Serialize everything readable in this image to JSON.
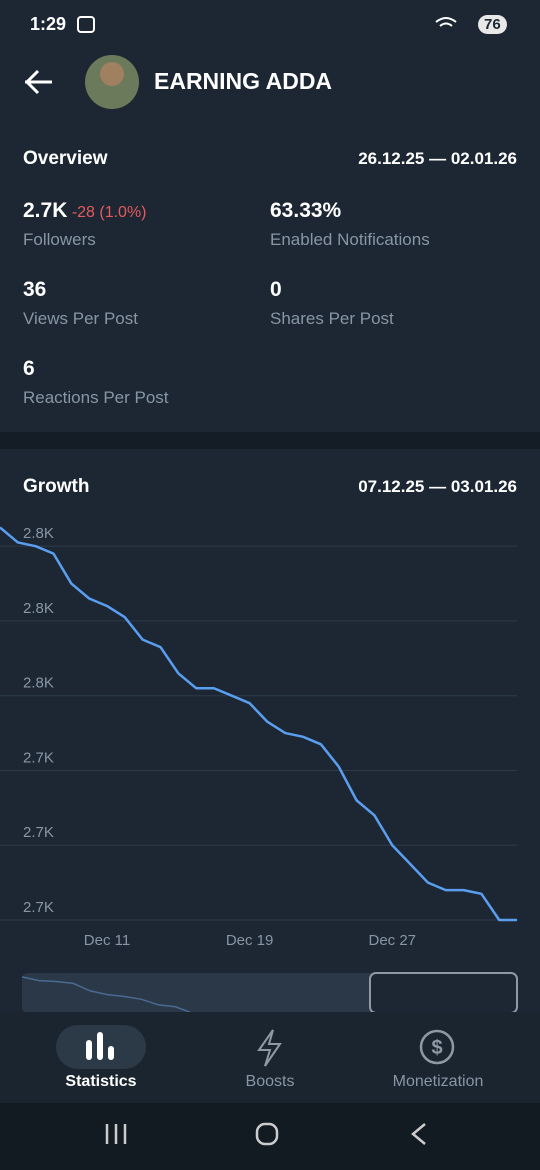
{
  "status_bar": {
    "time": "1:29",
    "battery": "76"
  },
  "header": {
    "title": "EARNING ADDA"
  },
  "overview": {
    "title": "Overview",
    "date_range": "26.12.25 — 02.01.26",
    "stats": [
      {
        "value": "2.7K",
        "change": "-28 (1.0%)",
        "label": "Followers"
      },
      {
        "value": "63.33%",
        "label": "Enabled Notifications"
      },
      {
        "value": "36",
        "label": "Views Per Post"
      },
      {
        "value": "0",
        "label": "Shares Per Post"
      },
      {
        "value": "6",
        "label": "Reactions Per Post"
      }
    ]
  },
  "chart_data": {
    "type": "line",
    "title": "Growth",
    "date_range": "07.12.25 — 03.01.26",
    "categories": [
      null,
      null,
      null,
      null,
      null,
      null,
      "Dec 11",
      null,
      null,
      null,
      null,
      null,
      null,
      null,
      "Dec 19",
      null,
      null,
      null,
      null,
      null,
      null,
      null,
      "Dec 27",
      null,
      null,
      null,
      null,
      null,
      null,
      null
    ],
    "values": [
      2805,
      2801,
      2800,
      2798,
      2790,
      2786,
      2784,
      2781,
      2775,
      2773,
      2766,
      2762,
      2762,
      2760,
      2758,
      2753,
      2750,
      2749,
      2747,
      2741,
      2732,
      2728,
      2720,
      2715,
      2710,
      2708,
      2708,
      2707,
      2700,
      2700
    ],
    "color": "#5a9ef0",
    "ylim": [
      2700,
      2807
    ],
    "yticks": [
      {
        "value": 2700,
        "label": "2.7K"
      },
      {
        "value": 2720,
        "label": "2.7K"
      },
      {
        "value": 2740,
        "label": "2.7K"
      },
      {
        "value": 2760,
        "label": "2.8K"
      },
      {
        "value": 2780,
        "label": "2.8K"
      },
      {
        "value": 2800,
        "label": "2.8K"
      }
    ],
    "grid": true
  },
  "nav": {
    "tabs": [
      "Statistics",
      "Boosts",
      "Monetization"
    ]
  }
}
